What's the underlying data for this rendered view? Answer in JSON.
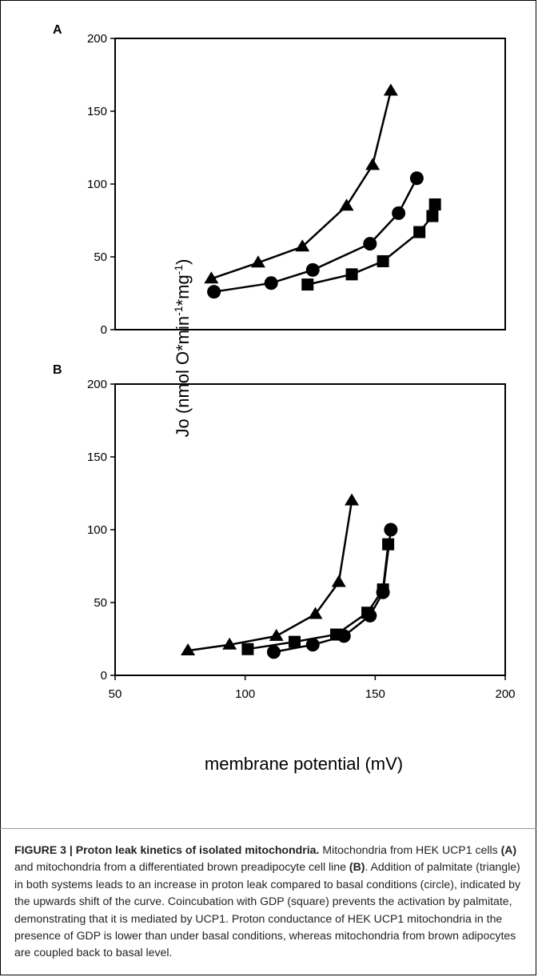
{
  "chart_data": [
    {
      "type": "line",
      "panel_label": "A",
      "xlim": [
        50,
        200
      ],
      "ylim": [
        0,
        200
      ],
      "yticks": [
        0,
        50,
        100,
        150,
        200
      ],
      "series": [
        {
          "marker": "triangle",
          "x": [
            87,
            105,
            122,
            139,
            149,
            156
          ],
          "y": [
            35,
            46,
            57,
            85,
            113,
            164
          ]
        },
        {
          "marker": "circle",
          "x": [
            88,
            110,
            126,
            148,
            159,
            166
          ],
          "y": [
            26,
            32,
            41,
            59,
            80,
            104
          ]
        },
        {
          "marker": "square",
          "x": [
            124,
            141,
            153,
            167,
            172,
            173
          ],
          "y": [
            31,
            38,
            47,
            67,
            78,
            86
          ]
        }
      ]
    },
    {
      "type": "line",
      "panel_label": "B",
      "xlim": [
        50,
        200
      ],
      "ylim": [
        0,
        200
      ],
      "xticks": [
        50,
        100,
        150,
        200
      ],
      "yticks": [
        0,
        50,
        100,
        150,
        200
      ],
      "series": [
        {
          "marker": "triangle",
          "x": [
            78,
            94,
            112,
            127,
            136,
            141
          ],
          "y": [
            17,
            21,
            27,
            42,
            64,
            120
          ]
        },
        {
          "marker": "circle",
          "x": [
            111,
            126,
            138,
            148,
            153,
            156
          ],
          "y": [
            16,
            21,
            27,
            41,
            57,
            100
          ]
        },
        {
          "marker": "square",
          "x": [
            101,
            119,
            135,
            147,
            153,
            155
          ],
          "y": [
            18,
            23,
            28,
            43,
            59,
            90
          ]
        }
      ]
    }
  ],
  "axes": {
    "ylabel_pre": "Jo (nmol O*min",
    "ylabel_exp1": "-1",
    "ylabel_mid": "*mg",
    "ylabel_exp2": "-1",
    "ylabel_post": ")",
    "xlabel": "membrane potential (mV)"
  },
  "caption": {
    "title": "FIGURE 3 | Proton leak kinetics of isolated mitochondria.",
    "t1": " Mitochondria from HEK UCP1 cells ",
    "ref_a": "(A)",
    "t2": " and mitochondria from a differentiated brown preadipocyte cell line ",
    "ref_b": "(B)",
    "t3": ". Addition of palmitate (triangle) in both systems leads to an increase in proton leak compared to basal conditions (circle), indicated by the upwards shift of the curve. Coincubation with GDP (square) prevents the activation by palmitate, demonstrating that it is mediated by UCP1. Proton conductance of HEK UCP1 mitochondria in the presence of GDP is lower than under basal conditions, whereas mitochondria from brown adipocytes are coupled back to basal level."
  }
}
